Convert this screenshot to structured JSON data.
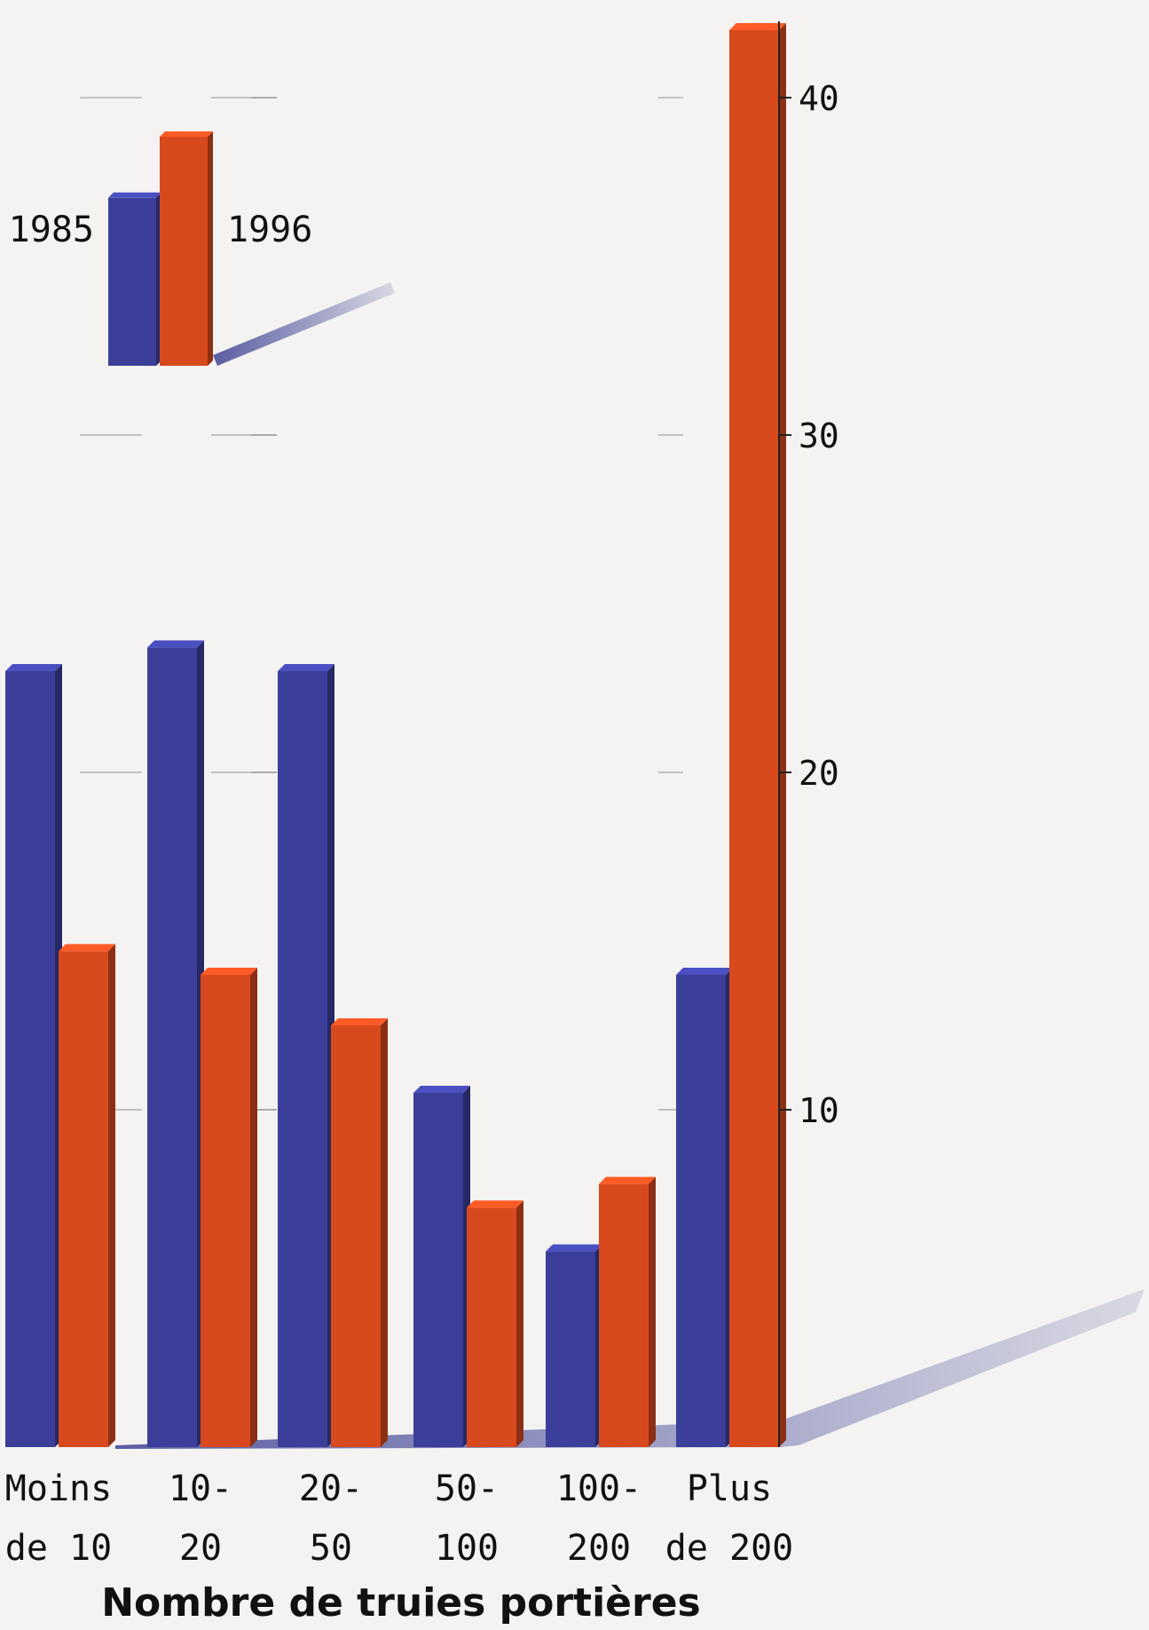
{
  "chart_data": {
    "type": "bar",
    "xlabel": "Nombre de truies portières",
    "ylabel": "",
    "ylim": [
      0,
      42
    ],
    "yticks": [
      10,
      20,
      30,
      40
    ],
    "grid": false,
    "legend_position": "top-left",
    "categories": [
      [
        "Moins",
        "de 10"
      ],
      [
        "10-",
        "20"
      ],
      [
        "20-",
        "50"
      ],
      [
        "50-",
        "100"
      ],
      [
        "100-",
        "200"
      ],
      [
        "Plus",
        "de 200"
      ]
    ],
    "series": [
      {
        "name": "1985",
        "color": "#3b3f9a",
        "values": [
          23,
          23.7,
          23,
          10.5,
          5.8,
          14
        ]
      },
      {
        "name": "1996",
        "color": "#d8491e",
        "values": [
          14.7,
          14,
          12.5,
          7.1,
          7.8,
          42
        ]
      }
    ]
  }
}
